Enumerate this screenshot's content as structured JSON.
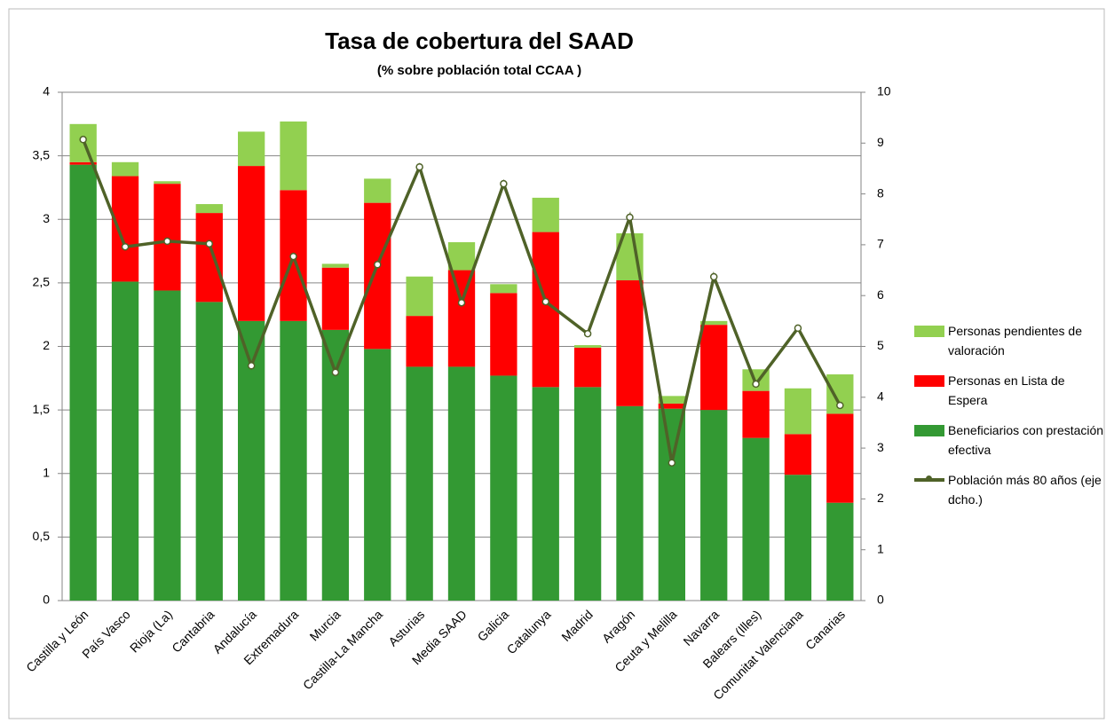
{
  "chart_data": {
    "type": "bar_line",
    "title": "Tasa de cobertura del SAAD",
    "subtitle": "(% sobre población total CCAA )",
    "categories": [
      "Castilla y León",
      "País Vasco",
      "Rioja (La)",
      "Cantabria",
      "Andalucía",
      "Extremadura",
      "Murcia",
      "Castilla-La Mancha",
      "Asturias",
      "Media SAAD",
      "Galicia",
      "Catalunya",
      "Madrid",
      "Aragón",
      "Ceuta y Melilla",
      "Navarra",
      "Balears (Illes)",
      "Comunitat Valenciana",
      "Canarias"
    ],
    "stacked": true,
    "series": [
      {
        "name": "Beneficiarios con prestación efectiva",
        "color": "#339933",
        "kind": "bar",
        "values": [
          3.43,
          2.51,
          2.44,
          2.35,
          2.2,
          2.2,
          2.13,
          1.98,
          1.84,
          1.84,
          1.77,
          1.68,
          1.68,
          1.53,
          1.51,
          1.5,
          1.28,
          0.99,
          0.77
        ]
      },
      {
        "name": "Personas en Lista de Espera",
        "color": "#ff0000",
        "kind": "bar",
        "values": [
          0.02,
          0.83,
          0.84,
          0.7,
          1.22,
          1.03,
          0.49,
          1.15,
          0.4,
          0.76,
          0.65,
          1.22,
          0.31,
          0.99,
          0.04,
          0.67,
          0.37,
          0.32,
          0.7
        ]
      },
      {
        "name": "Personas pendientes de valoración",
        "color": "#92d050",
        "kind": "bar",
        "values": [
          0.3,
          0.11,
          0.02,
          0.07,
          0.27,
          0.54,
          0.03,
          0.19,
          0.31,
          0.22,
          0.07,
          0.27,
          0.02,
          0.37,
          0.06,
          0.03,
          0.17,
          0.36,
          0.31
        ]
      },
      {
        "name": "Población más 80 años (eje dcho.)",
        "color": "#4f6228",
        "kind": "line",
        "axis": "y2",
        "values": [
          9.07,
          6.96,
          7.07,
          7.02,
          4.62,
          6.77,
          4.49,
          6.61,
          8.53,
          5.86,
          8.2,
          5.88,
          5.25,
          7.54,
          2.71,
          6.37,
          4.26,
          5.36,
          3.84
        ]
      }
    ],
    "legend_order": [
      2,
      1,
      0,
      3
    ],
    "ylim": [
      0,
      4
    ],
    "yticks": [
      0,
      {
        "value": 0.5,
        "label": "0,5"
      },
      1,
      {
        "value": 1.5,
        "label": "1,5"
      },
      2,
      {
        "value": 2.5,
        "label": "2,5"
      },
      3,
      {
        "value": 3.5,
        "label": "3,5"
      },
      4
    ],
    "y2lim": [
      0,
      10
    ],
    "y2ticks": [
      0,
      1,
      2,
      3,
      4,
      5,
      6,
      7,
      8,
      9,
      10
    ],
    "grid": true,
    "legend": "right"
  }
}
